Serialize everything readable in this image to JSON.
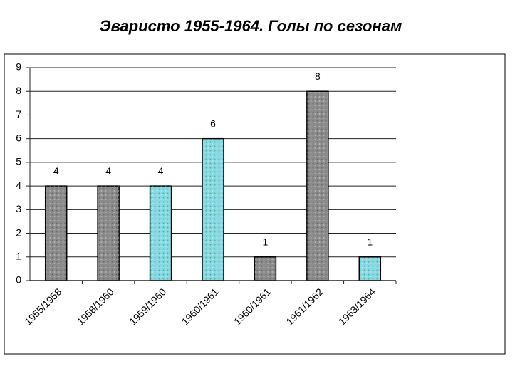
{
  "chart_data": {
    "type": "bar",
    "title": "Эваристо 1955-1964. Голы по сезонам",
    "categories": [
      "1955/1958",
      "1958/1960",
      "1959/1960",
      "1960/1961",
      "1960/1961",
      "1961/1962",
      "1963/1964"
    ],
    "values": [
      4,
      4,
      4,
      6,
      1,
      8,
      1
    ],
    "colors": [
      "#8c8c8c",
      "#8c8c8c",
      "#86dbe3",
      "#86dbe3",
      "#8c8c8c",
      "#8c8c8c",
      "#86dbe3"
    ],
    "ylim": [
      0,
      9
    ],
    "yticks": [
      0,
      1,
      2,
      3,
      4,
      5,
      6,
      7,
      8,
      9
    ],
    "grid": true
  }
}
